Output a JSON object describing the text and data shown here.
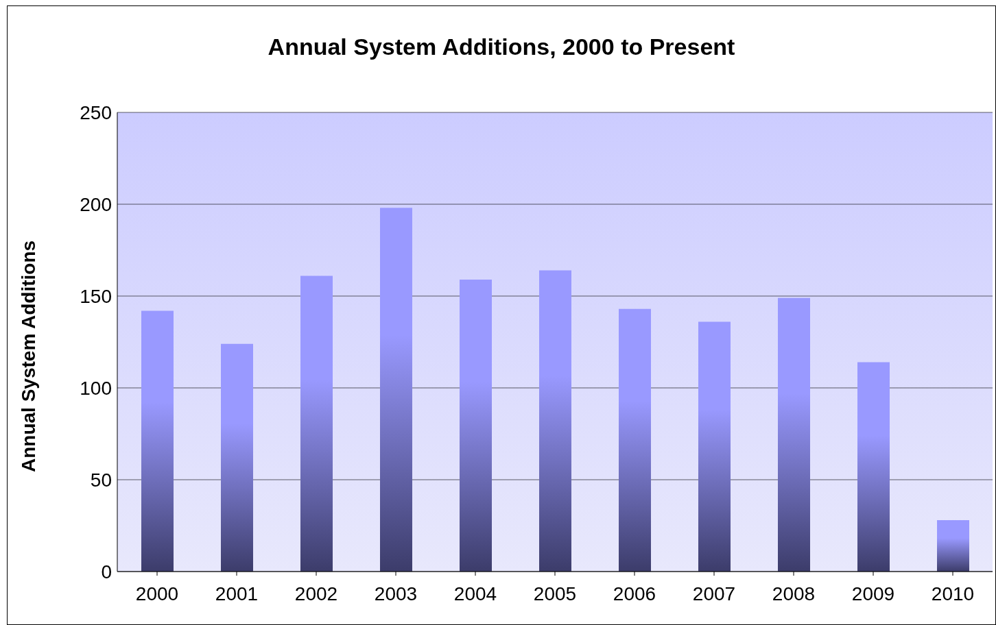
{
  "chart_data": {
    "type": "bar",
    "title": "Annual System Additions, 2000 to Present",
    "ylabel": "Annual System Additions",
    "categories": [
      "2000",
      "2001",
      "2002",
      "2003",
      "2004",
      "2005",
      "2006",
      "2007",
      "2008",
      "2009",
      "2010"
    ],
    "values": [
      142,
      124,
      161,
      198,
      159,
      164,
      143,
      136,
      149,
      114,
      28
    ],
    "color": "#9999ff",
    "ylim": [
      0,
      250
    ],
    "yticks": [
      0,
      50,
      100,
      150,
      200,
      250
    ],
    "grid": "y"
  }
}
